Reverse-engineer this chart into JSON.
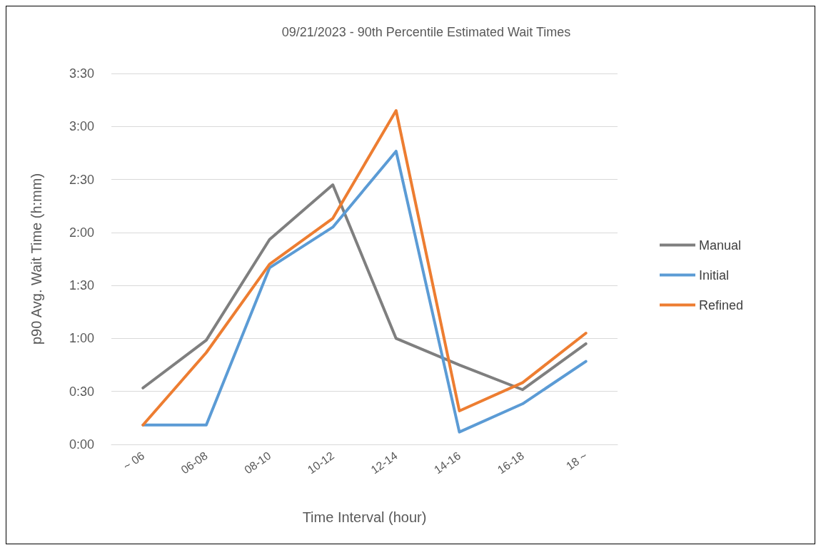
{
  "chart_data": {
    "type": "line",
    "title": "09/21/2023 - 90th Percentile Estimated Wait Times",
    "xlabel": "Time Interval (hour)",
    "ylabel": "p90 Avg. Wait Time (h:mm)",
    "categories": [
      "~ 06",
      "06-08",
      "08-10",
      "10-12",
      "12-14",
      "14-16",
      "16-18",
      "18 ~"
    ],
    "series": [
      {
        "name": "Manual",
        "color": "#7f7f7f",
        "values": [
          32,
          59,
          116,
          147,
          60,
          45,
          31,
          57
        ]
      },
      {
        "name": "Initial",
        "color": "#5b9bd5",
        "values": [
          11,
          11,
          100,
          123,
          166,
          7,
          23,
          47
        ]
      },
      {
        "name": "Refined",
        "color": "#ed7d31",
        "values": [
          11,
          52,
          102,
          128,
          189,
          19,
          35,
          63
        ]
      }
    ],
    "ylim": [
      0,
      210
    ],
    "yticks": [
      {
        "value": 0,
        "label": "0:00"
      },
      {
        "value": 30,
        "label": "0:30"
      },
      {
        "value": 60,
        "label": "1:00"
      },
      {
        "value": 90,
        "label": "1:30"
      },
      {
        "value": 120,
        "label": "2:00"
      },
      {
        "value": 150,
        "label": "2:30"
      },
      {
        "value": 180,
        "label": "3:00"
      },
      {
        "value": 210,
        "label": "3:30"
      }
    ],
    "grid": "y",
    "legend": "right",
    "marker": "none",
    "line_style": "solid"
  }
}
